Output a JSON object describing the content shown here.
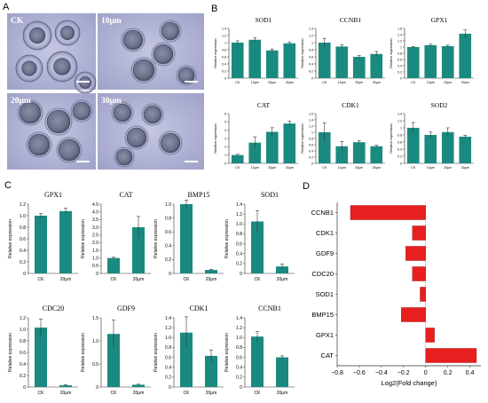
{
  "panels": {
    "A": {
      "label": "A",
      "images": [
        {
          "label": "CK"
        },
        {
          "label": "10μm"
        },
        {
          "label": "20μm"
        },
        {
          "label": "30μm"
        }
      ]
    },
    "B": {
      "label": "B"
    },
    "C": {
      "label": "C"
    },
    "D": {
      "label": "D"
    }
  },
  "colors": {
    "bar": "#1a8a80",
    "neg_bar": "#e81f1f",
    "axis": "#333333",
    "micro_bg": "#b4b6d6"
  },
  "chart_data": [
    {
      "id": "B-SOD1",
      "panel": "B",
      "type": "bar",
      "title": "SOD1",
      "ylabel": "Relative expression",
      "categories": [
        "CK",
        "10μm",
        "20μm",
        "30μm"
      ],
      "values": [
        1.0,
        1.08,
        0.78,
        0.98
      ],
      "errors": [
        0.05,
        0.05,
        0.04,
        0.03
      ],
      "ylim": [
        0,
        1.4
      ],
      "yticks": [
        0,
        0.2,
        0.4,
        0.6,
        0.8,
        1.0,
        1.2,
        1.4
      ]
    },
    {
      "id": "B-CCNB1",
      "panel": "B",
      "type": "bar",
      "title": "CCNB1",
      "ylabel": "Relative expression",
      "categories": [
        "CK",
        "10μm",
        "20μm",
        "30μm"
      ],
      "values": [
        1.0,
        0.89,
        0.6,
        0.68
      ],
      "errors": [
        0.12,
        0.05,
        0.04,
        0.07
      ],
      "ylim": [
        0,
        1.4
      ],
      "yticks": [
        0,
        0.2,
        0.4,
        0.6,
        0.8,
        1.0,
        1.2,
        1.4
      ]
    },
    {
      "id": "B-GPX1",
      "panel": "B",
      "type": "bar",
      "title": "GPX1",
      "ylabel": "Relative expression",
      "categories": [
        "CK",
        "10μm",
        "20μm",
        "30μm"
      ],
      "values": [
        1.0,
        1.06,
        1.03,
        1.43
      ],
      "errors": [
        0.02,
        0.03,
        0.03,
        0.12
      ],
      "ylim": [
        0,
        1.6
      ],
      "yticks": [
        0,
        0.2,
        0.4,
        0.6,
        0.8,
        1.0,
        1.2,
        1.4,
        1.6
      ]
    },
    {
      "id": "B-CAT",
      "panel": "B",
      "type": "bar",
      "title": "CAT",
      "ylabel": "Relative expression",
      "categories": [
        "CK",
        "10μm",
        "20μm",
        "30μm"
      ],
      "values": [
        1.0,
        2.5,
        3.8,
        4.8
      ],
      "errors": [
        0.1,
        0.7,
        0.5,
        0.3
      ],
      "ylim": [
        0,
        6
      ],
      "yticks": [
        0,
        1,
        2,
        3,
        4,
        5,
        6
      ]
    },
    {
      "id": "B-CDK1",
      "panel": "B",
      "type": "bar",
      "title": "CDK1",
      "ylabel": "Relative expression",
      "categories": [
        "CK",
        "10μm",
        "20μm",
        "30μm"
      ],
      "values": [
        1.0,
        0.55,
        0.68,
        0.55
      ],
      "errors": [
        0.3,
        0.15,
        0.05,
        0.03
      ],
      "ylim": [
        0,
        1.6
      ],
      "yticks": [
        0,
        0.2,
        0.4,
        0.6,
        0.8,
        1.0,
        1.2,
        1.4,
        1.6
      ]
    },
    {
      "id": "B-SOD2",
      "panel": "B",
      "type": "bar",
      "title": "SOD2",
      "ylabel": "Relative expression",
      "categories": [
        "CK",
        "10μm",
        "20μm",
        "30μm"
      ],
      "values": [
        1.0,
        0.8,
        0.88,
        0.75
      ],
      "errors": [
        0.15,
        0.08,
        0.12,
        0.04
      ],
      "ylim": [
        0,
        1.4
      ],
      "yticks": [
        0,
        0.2,
        0.4,
        0.6,
        0.8,
        1.0,
        1.2,
        1.4
      ]
    },
    {
      "id": "C-GPX1",
      "panel": "C",
      "type": "bar",
      "title": "GPX1",
      "ylabel": "Relative expression",
      "categories": [
        "CK",
        "20μm"
      ],
      "values": [
        1.0,
        1.08
      ],
      "errors": [
        0.04,
        0.05
      ],
      "ylim": [
        0,
        1.2
      ],
      "yticks": [
        0,
        0.2,
        0.4,
        0.6,
        0.8,
        1.0,
        1.2
      ]
    },
    {
      "id": "C-CAT",
      "panel": "C",
      "type": "bar",
      "title": "CAT",
      "ylabel": "Relative expression",
      "categories": [
        "CK",
        "20μm"
      ],
      "values": [
        1.0,
        3.0
      ],
      "errors": [
        0.05,
        0.7
      ],
      "ylim": [
        0,
        4.5
      ],
      "yticks": [
        0,
        0.5,
        1.0,
        1.5,
        2.0,
        2.5,
        3.0,
        3.5,
        4.0,
        4.5
      ]
    },
    {
      "id": "C-BMP15",
      "panel": "C",
      "type": "bar",
      "title": "BMP15",
      "ylabel": "Relative expression",
      "categories": [
        "CK",
        "20μm"
      ],
      "values": [
        1.0,
        0.05
      ],
      "errors": [
        0.06,
        0.01
      ],
      "ylim": [
        0,
        1.0
      ],
      "yticks": [
        0,
        0.2,
        0.4,
        0.6,
        0.8,
        1.0
      ]
    },
    {
      "id": "C-SOD1",
      "panel": "C",
      "type": "bar",
      "title": "SOD1",
      "ylabel": "Relative expression",
      "categories": [
        "CK",
        "20μm"
      ],
      "values": [
        1.05,
        0.14
      ],
      "errors": [
        0.22,
        0.05
      ],
      "ylim": [
        0,
        1.4
      ],
      "yticks": [
        0,
        0.2,
        0.4,
        0.6,
        0.8,
        1.0,
        1.2,
        1.4
      ]
    },
    {
      "id": "C-CDC20",
      "panel": "C",
      "type": "bar",
      "title": "CDC20",
      "ylabel": "Relative expression",
      "categories": [
        "CK",
        "20μm"
      ],
      "values": [
        1.03,
        0.03
      ],
      "errors": [
        0.15,
        0.01
      ],
      "ylim": [
        0,
        1.2
      ],
      "yticks": [
        0,
        0.2,
        0.4,
        0.6,
        0.8,
        1.0,
        1.2
      ]
    },
    {
      "id": "C-GDF9",
      "panel": "C",
      "type": "bar",
      "title": "GDF9",
      "ylabel": "Relative expression",
      "categories": [
        "CK",
        "20μm"
      ],
      "values": [
        1.15,
        0.05
      ],
      "errors": [
        0.3,
        0.01
      ],
      "ylim": [
        0,
        1.5
      ],
      "yticks": [
        0,
        0.5,
        1.0,
        1.5
      ]
    },
    {
      "id": "C-CDK1",
      "panel": "C",
      "type": "bar",
      "title": "CDK1",
      "ylabel": "Relative expression",
      "categories": [
        "CK",
        "20μm"
      ],
      "values": [
        1.1,
        0.63
      ],
      "errors": [
        0.32,
        0.12
      ],
      "ylim": [
        0,
        1.4
      ],
      "yticks": [
        0,
        0.2,
        0.4,
        0.6,
        0.8,
        1.0,
        1.2,
        1.4
      ]
    },
    {
      "id": "C-CCNB1",
      "panel": "C",
      "type": "bar",
      "title": "CCNB1",
      "ylabel": "Relative expression",
      "categories": [
        "CK",
        "20μm"
      ],
      "values": [
        1.02,
        0.6
      ],
      "errors": [
        0.1,
        0.03
      ],
      "ylim": [
        0,
        1.4
      ],
      "yticks": [
        0,
        0.2,
        0.4,
        0.6,
        0.8,
        1.0,
        1.2,
        1.4
      ]
    },
    {
      "id": "D-fold",
      "panel": "D",
      "type": "bar",
      "orientation": "horizontal",
      "categories": [
        "CCNB1",
        "CDK1",
        "GDF9",
        "CDC20",
        "SOD1",
        "BMP15",
        "GPX1",
        "CAT"
      ],
      "values": [
        -0.68,
        -0.12,
        -0.18,
        -0.12,
        -0.05,
        -0.22,
        0.08,
        0.46
      ],
      "xlabel": "Log2(Fold change)",
      "xlim": [
        -0.8,
        0.5
      ],
      "xticks": [
        -0.8,
        -0.6,
        -0.4,
        -0.2,
        0,
        0.2,
        0.4
      ]
    }
  ]
}
